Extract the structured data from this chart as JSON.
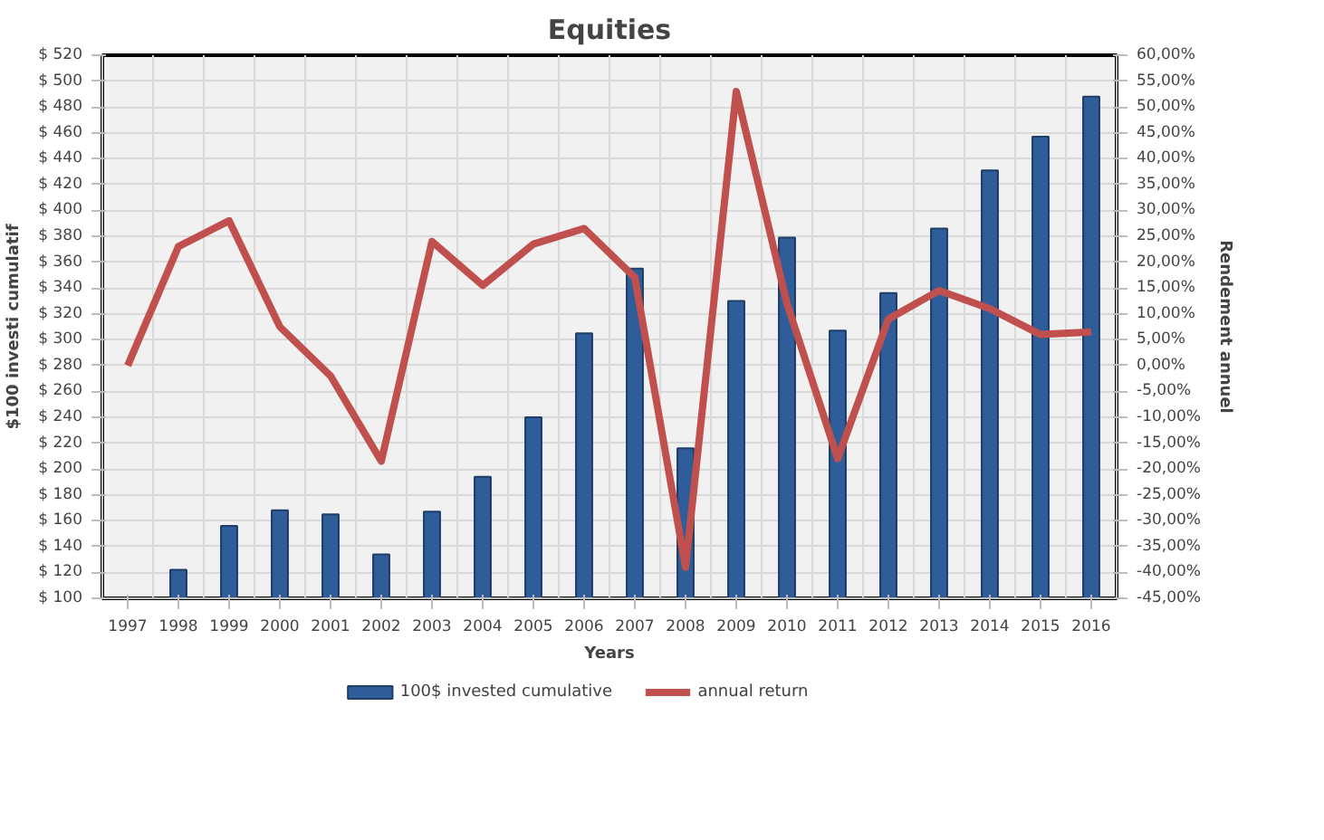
{
  "chart_data": {
    "type": "bar",
    "title": "Equities",
    "xlabel": "Years",
    "ylabel": "$100 investi cumulatif",
    "y2label": "Rendement annuel",
    "categories": [
      "1997",
      "1998",
      "1999",
      "2000",
      "2001",
      "2002",
      "2003",
      "2004",
      "2005",
      "2006",
      "2007",
      "2008",
      "2009",
      "2010",
      "2011",
      "2012",
      "2013",
      "2014",
      "2015",
      "2016"
    ],
    "series": [
      {
        "name": "100$ invested cumulative",
        "color": "#2f5d9a",
        "values": [
          null,
          122,
          156,
          168,
          165,
          134,
          167,
          194,
          240,
          305,
          355,
          216,
          330,
          379,
          307,
          336,
          386,
          431,
          457,
          488
        ]
      },
      {
        "name": "annual return",
        "type": "line",
        "axis": "y2",
        "color": "#c0504d",
        "values": [
          0,
          23,
          28,
          7.5,
          -2,
          -18.5,
          24,
          15.5,
          23.5,
          26.5,
          17,
          -39,
          53,
          12,
          -18,
          9,
          14.5,
          11,
          6,
          6.5
        ]
      }
    ],
    "ylim": [
      100,
      520
    ],
    "yticks": [
      {
        "value": 100,
        "label": "$ 100"
      },
      {
        "value": 120,
        "label": "$ 120"
      },
      {
        "value": 140,
        "label": "$ 140"
      },
      {
        "value": 160,
        "label": "$ 160"
      },
      {
        "value": 180,
        "label": "$ 180"
      },
      {
        "value": 200,
        "label": "$ 200"
      },
      {
        "value": 220,
        "label": "$ 220"
      },
      {
        "value": 240,
        "label": "$ 240"
      },
      {
        "value": 260,
        "label": "$ 260"
      },
      {
        "value": 280,
        "label": "$ 280"
      },
      {
        "value": 300,
        "label": "$ 300"
      },
      {
        "value": 320,
        "label": "$ 320"
      },
      {
        "value": 340,
        "label": "$ 340"
      },
      {
        "value": 360,
        "label": "$ 360"
      },
      {
        "value": 380,
        "label": "$ 380"
      },
      {
        "value": 400,
        "label": "$ 400"
      },
      {
        "value": 420,
        "label": "$ 420"
      },
      {
        "value": 440,
        "label": "$ 440"
      },
      {
        "value": 460,
        "label": "$ 460"
      },
      {
        "value": 480,
        "label": "$ 480"
      },
      {
        "value": 500,
        "label": "$ 500"
      },
      {
        "value": 520,
        "label": "$ 520"
      }
    ],
    "y2lim": [
      -45,
      60
    ],
    "y2ticks": [
      {
        "value": -45,
        "label": "-45,00%"
      },
      {
        "value": -40,
        "label": "-40,00%"
      },
      {
        "value": -35,
        "label": "-35,00%"
      },
      {
        "value": -30,
        "label": "-30,00%"
      },
      {
        "value": -25,
        "label": "-25,00%"
      },
      {
        "value": -20,
        "label": "-20,00%"
      },
      {
        "value": -15,
        "label": "-15,00%"
      },
      {
        "value": -10,
        "label": "-10,00%"
      },
      {
        "value": -5,
        "label": "-5,00%"
      },
      {
        "value": 0,
        "label": "0,00%"
      },
      {
        "value": 5,
        "label": "5,00%"
      },
      {
        "value": 10,
        "label": "10,00%"
      },
      {
        "value": 15,
        "label": "15,00%"
      },
      {
        "value": 20,
        "label": "20,00%"
      },
      {
        "value": 25,
        "label": "25,00%"
      },
      {
        "value": 30,
        "label": "30,00%"
      },
      {
        "value": 35,
        "label": "35,00%"
      },
      {
        "value": 40,
        "label": "40,00%"
      },
      {
        "value": 45,
        "label": "45,00%"
      },
      {
        "value": 50,
        "label": "50,00%"
      },
      {
        "value": 55,
        "label": "55,00%"
      },
      {
        "value": 60,
        "label": "60,00%"
      }
    ],
    "grid": true,
    "legend": "bottom",
    "marker": "none",
    "line_style": "solid"
  }
}
